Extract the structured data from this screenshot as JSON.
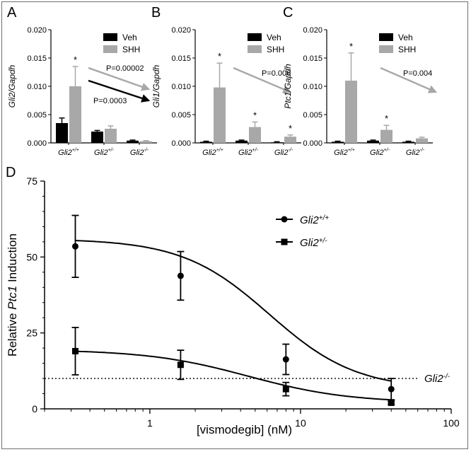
{
  "chart_data": [
    {
      "panel": "A",
      "type": "bar",
      "ylabel": "Gli2/Gapdh",
      "ylim": [
        0,
        0.02
      ],
      "yticks": [
        "0.000",
        "0.005",
        "0.010",
        "0.015",
        "0.020"
      ],
      "categories": [
        {
          "base": "Gli2",
          "sup": "+/+"
        },
        {
          "base": "Gli2",
          "sup": "+/-"
        },
        {
          "base": "Gli2",
          "sup": "-/-"
        }
      ],
      "series": [
        {
          "name": "Veh",
          "color": "#000000",
          "values": [
            0.0035,
            0.002,
            0.0004
          ],
          "errors": [
            0.0009,
            0.0002,
            0.0001
          ]
        },
        {
          "name": "SHH",
          "color": "#a8a8a8",
          "values": [
            0.01,
            0.0025,
            0.0003
          ],
          "errors": [
            0.0035,
            0.0005,
            0.0001
          ]
        }
      ],
      "stars": [
        "*",
        "",
        ""
      ],
      "arrows": [
        {
          "label": "P=0.00002",
          "color": "#a8a8a8"
        },
        {
          "label": "P=0.0003",
          "color": "#000000"
        }
      ]
    },
    {
      "panel": "B",
      "type": "bar",
      "ylabel": "Gli1/Gapdh",
      "ylim": [
        0,
        0.02
      ],
      "yticks": [
        "0.000",
        "0.005",
        "0.010",
        "0.015",
        "0.020"
      ],
      "categories": [
        {
          "base": "Gli2",
          "sup": "+/+"
        },
        {
          "base": "Gli2",
          "sup": "+/-"
        },
        {
          "base": "Gli2",
          "sup": "-/-"
        }
      ],
      "series": [
        {
          "name": "Veh",
          "color": "#000000",
          "values": [
            0.0002,
            0.0004,
            0.0001
          ],
          "errors": [
            0.0001,
            0.0001,
            0.0001
          ]
        },
        {
          "name": "SHH",
          "color": "#a8a8a8",
          "values": [
            0.0098,
            0.0028,
            0.0011
          ],
          "errors": [
            0.0043,
            0.0009,
            0.0003
          ]
        }
      ],
      "stars": [
        "*",
        "*",
        "*"
      ],
      "arrows": [
        {
          "label": "P=0.006",
          "color": "#a8a8a8"
        }
      ]
    },
    {
      "panel": "C",
      "type": "bar",
      "ylabel": "Ptc1/Gapdh",
      "ylim": [
        0,
        0.02
      ],
      "yticks": [
        "0.000",
        "0.005",
        "0.010",
        "0.015",
        "0.020"
      ],
      "categories": [
        {
          "base": "Gli2",
          "sup": "+/+"
        },
        {
          "base": "Gli2",
          "sup": "+/-"
        },
        {
          "base": "Gli2",
          "sup": "-/-"
        }
      ],
      "series": [
        {
          "name": "Veh",
          "color": "#000000",
          "values": [
            0.0002,
            0.0004,
            0.0002
          ],
          "errors": [
            0.0001,
            0.0001,
            0.0001
          ]
        },
        {
          "name": "SHH",
          "color": "#a8a8a8",
          "values": [
            0.011,
            0.0023,
            0.0008
          ],
          "errors": [
            0.0049,
            0.0008,
            0.0002
          ]
        }
      ],
      "stars": [
        "*",
        "*",
        ""
      ],
      "arrows": [
        {
          "label": "P=0.004",
          "color": "#a8a8a8"
        }
      ]
    },
    {
      "panel": "D",
      "type": "scatter",
      "xscale": "log",
      "xlim": [
        0.2,
        100
      ],
      "ylim": [
        0,
        75
      ],
      "xticks": [
        1,
        10,
        100
      ],
      "yticks": [
        0,
        25,
        50,
        75
      ],
      "xlabel": "[vismodegib] (nM)",
      "ylabel": {
        "pre": "Relative ",
        "italic": "Ptc1",
        "post": " Induction"
      },
      "series": [
        {
          "name": {
            "base": "Gli2",
            "sup": "+/+"
          },
          "marker": "circle",
          "x": [
            0.32,
            1.6,
            8,
            40
          ],
          "y": [
            53.5,
            43.8,
            16.3,
            6.5
          ],
          "errors": [
            10.2,
            8,
            5,
            3.5
          ],
          "fit": {
            "top": 56,
            "bottom": 6.3,
            "ec50": 6.2,
            "hill": 1.5
          }
        },
        {
          "name": {
            "base": "Gli2",
            "sup": "+/-"
          },
          "marker": "square",
          "x": [
            0.32,
            1.6,
            8,
            40
          ],
          "y": [
            19,
            14.5,
            6.5,
            2
          ],
          "errors": [
            7.8,
            4.8,
            2.2,
            0.5
          ],
          "fit": {
            "top": 19.5,
            "bottom": 2,
            "ec50": 4.5,
            "hill": 1.3
          }
        }
      ],
      "reference_line": {
        "y": 10,
        "label": {
          "base": "Gli2",
          "sup": "-/-"
        }
      }
    }
  ]
}
